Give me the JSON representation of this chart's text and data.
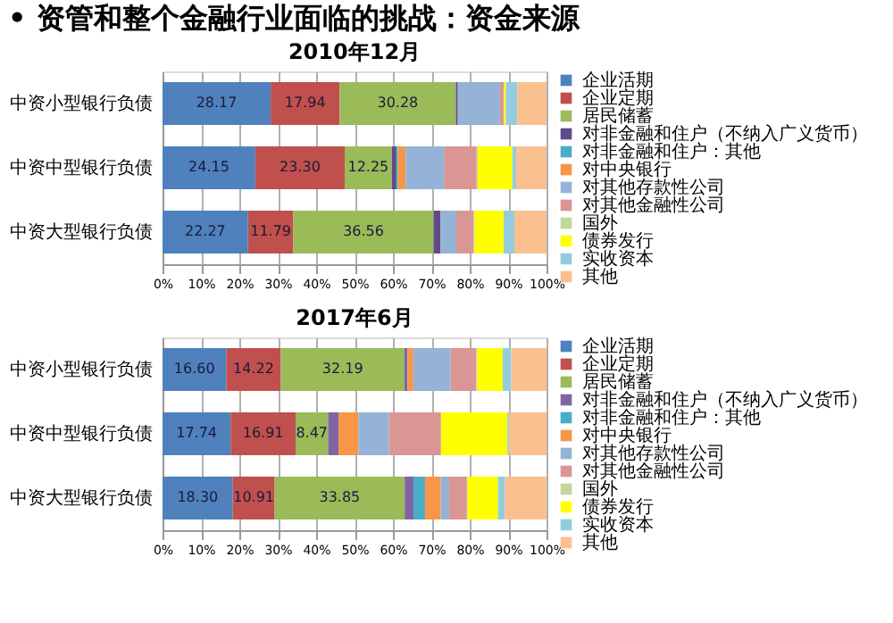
{
  "chart_data": [
    {
      "type": "bar",
      "title": "• 资管和整个金融行业面临的挑战：资金来源",
      "subtitle": "2010年12月",
      "orientation": "horizontal",
      "stacked": true,
      "legend": "right",
      "grid": "x",
      "categories": [
        "中资小型银行负债",
        "中资中型银行负债",
        "中资大型银行负债"
      ],
      "xlim": [
        0,
        100
      ],
      "xticks": [
        {
          "value": 0,
          "label": "0%"
        },
        {
          "value": 10,
          "label": "10%"
        },
        {
          "value": 20,
          "label": "20%"
        },
        {
          "value": 30,
          "label": "30%"
        },
        {
          "value": 40,
          "label": "40%"
        },
        {
          "value": 50,
          "label": "50%"
        },
        {
          "value": 60,
          "label": "60%"
        },
        {
          "value": 70,
          "label": "70%"
        },
        {
          "value": 80,
          "label": "80%"
        },
        {
          "value": 90,
          "label": "90%"
        },
        {
          "value": 100,
          "label": "100%"
        }
      ],
      "series": [
        {
          "name": "企业活期",
          "color": "#4f81bd",
          "values": [
            28.17,
            24.15,
            22.27
          ],
          "value_labels": [
            "28.17",
            "24.15",
            "22.27"
          ]
        },
        {
          "name": "企业定期",
          "color": "#c0504d",
          "values": [
            17.94,
            23.3,
            11.79
          ],
          "value_labels": [
            "17.94",
            "23.30",
            "11.79"
          ]
        },
        {
          "name": "居民储蓄",
          "color": "#9bbb59",
          "values": [
            30.28,
            12.25,
            36.56
          ],
          "value_labels": [
            "30.28",
            "12.25",
            "36.56"
          ]
        },
        {
          "name": "对非金融和住户（不纳入广义货币）",
          "color": "#5f4b8b",
          "values": [
            0.5,
            1.2,
            1.8
          ]
        },
        {
          "name": "对非金融和住户：其他",
          "color": "#4bacc6",
          "values": [
            0,
            0.4,
            0
          ]
        },
        {
          "name": "对中央银行",
          "color": "#f79646",
          "values": [
            0,
            2.0,
            0
          ]
        },
        {
          "name": "对其他存款性公司",
          "color": "#95b3d7",
          "values": [
            11.0,
            10.0,
            4.1
          ]
        },
        {
          "name": "对其他金融性公司",
          "color": "#d99694",
          "values": [
            1.0,
            8.5,
            4.5
          ]
        },
        {
          "name": "国外",
          "color": "#c3d69b",
          "values": [
            0,
            0.3,
            0.3
          ]
        },
        {
          "name": "债券发行",
          "color": "#ffff00",
          "values": [
            0.5,
            9.0,
            7.5
          ]
        },
        {
          "name": "实收资本",
          "color": "#93cddd",
          "values": [
            3.0,
            1.0,
            2.8
          ]
        },
        {
          "name": "其他",
          "color": "#fac090",
          "values": [
            7.6,
            7.9,
            8.4
          ]
        }
      ]
    },
    {
      "type": "bar",
      "subtitle": "2017年6月",
      "orientation": "horizontal",
      "stacked": true,
      "legend": "right",
      "grid": "x",
      "categories": [
        "中资小型银行负债",
        "中资中型银行负债",
        "中资大型银行负债"
      ],
      "xlim": [
        0,
        100
      ],
      "xticks": [
        {
          "value": 0,
          "label": "0%"
        },
        {
          "value": 10,
          "label": "10%"
        },
        {
          "value": 20,
          "label": "20%"
        },
        {
          "value": 30,
          "label": "30%"
        },
        {
          "value": 40,
          "label": "40%"
        },
        {
          "value": 50,
          "label": "50%"
        },
        {
          "value": 60,
          "label": "60%"
        },
        {
          "value": 70,
          "label": "70%"
        },
        {
          "value": 80,
          "label": "80%"
        },
        {
          "value": 90,
          "label": "90%"
        },
        {
          "value": 100,
          "label": "100%"
        }
      ],
      "series": [
        {
          "name": "企业活期",
          "color": "#4f81bd",
          "values": [
            16.6,
            17.74,
            18.3
          ],
          "value_labels": [
            "16.60",
            "17.74",
            "18.30"
          ]
        },
        {
          "name": "企业定期",
          "color": "#c0504d",
          "values": [
            14.22,
            16.91,
            10.91
          ],
          "value_labels": [
            "14.22",
            "16.91",
            "10.91"
          ]
        },
        {
          "name": "居民储蓄",
          "color": "#9bbb59",
          "values": [
            32.19,
            8.47,
            33.85
          ],
          "value_labels": [
            "32.19",
            "8.47",
            "33.85"
          ]
        },
        {
          "name": "对非金融和住户（不纳入广义货币）",
          "color": "#8064a2",
          "values": [
            0.8,
            2.7,
            2.3
          ]
        },
        {
          "name": "对非金融和住户：其他",
          "color": "#4bacc6",
          "values": [
            0,
            0,
            3.0
          ]
        },
        {
          "name": "对中央银行",
          "color": "#f79646",
          "values": [
            1.5,
            5.2,
            4.1
          ]
        },
        {
          "name": "对其他存款性公司",
          "color": "#95b3d7",
          "values": [
            9.7,
            7.9,
            2.2
          ]
        },
        {
          "name": "对其他金融性公司",
          "color": "#d99694",
          "values": [
            6.7,
            13.6,
            4.6
          ]
        },
        {
          "name": "国外",
          "color": "#c3d69b",
          "values": [
            0.3,
            0,
            0.2
          ]
        },
        {
          "name": "债券发行",
          "color": "#ffff00",
          "values": [
            6.6,
            17.3,
            7.9
          ]
        },
        {
          "name": "实收资本",
          "color": "#93cddd",
          "values": [
            2.2,
            0.4,
            1.8
          ]
        },
        {
          "name": "其他",
          "color": "#fac090",
          "values": [
            9.2,
            9.8,
            10.8
          ]
        }
      ]
    }
  ]
}
